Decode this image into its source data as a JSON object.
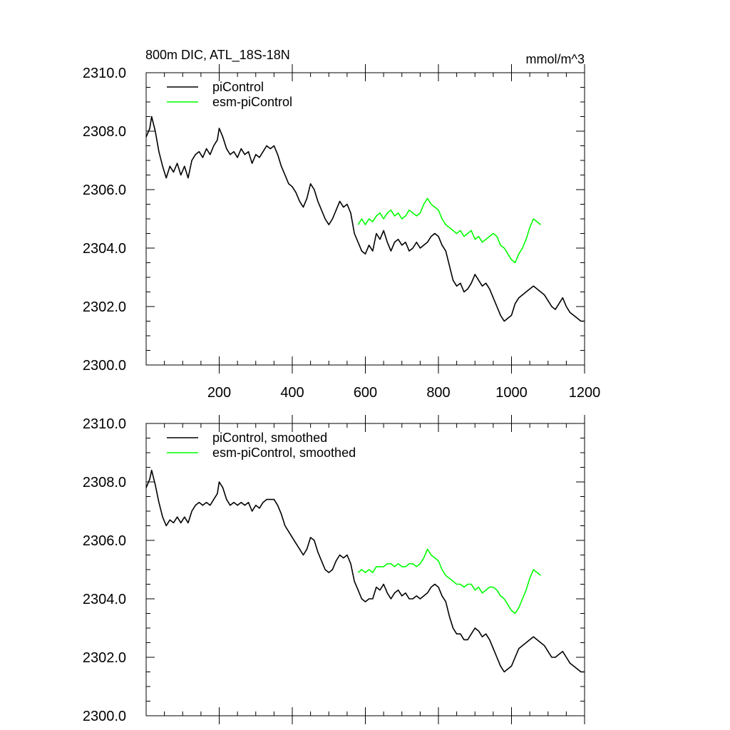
{
  "chart_data": [
    {
      "type": "line",
      "title": "800m DIC, ATL_18S-18N",
      "units": "mmol/m^3",
      "xlim": [
        0,
        1200
      ],
      "ylim": [
        2300.0,
        2310.0
      ],
      "xticks": [
        200,
        400,
        600,
        800,
        1000,
        1200
      ],
      "xtick_labels": [
        "200",
        "400",
        "600",
        "800",
        "1000",
        "1200"
      ],
      "yticks": [
        2300.0,
        2302.0,
        2304.0,
        2306.0,
        2308.0,
        2310.0
      ],
      "ytick_labels": [
        "2300.0",
        "2302.0",
        "2304.0",
        "2306.0",
        "2308.0",
        "2310.0"
      ],
      "legend_position": "top-left",
      "series": [
        {
          "name": "piControl",
          "color": "#000000",
          "x": [
            0,
            10,
            15,
            25,
            35,
            45,
            55,
            65,
            75,
            85,
            95,
            105,
            115,
            125,
            135,
            145,
            155,
            165,
            175,
            185,
            195,
            200,
            210,
            220,
            230,
            240,
            250,
            260,
            270,
            280,
            290,
            300,
            310,
            320,
            330,
            340,
            350,
            360,
            370,
            380,
            390,
            400,
            410,
            420,
            430,
            440,
            450,
            460,
            470,
            480,
            490,
            500,
            510,
            520,
            530,
            540,
            550,
            560,
            570,
            580,
            590,
            600,
            610,
            620,
            630,
            640,
            650,
            660,
            670,
            680,
            690,
            700,
            710,
            720,
            730,
            740,
            750,
            760,
            770,
            780,
            790,
            800,
            810,
            820,
            830,
            840,
            850,
            860,
            870,
            880,
            890,
            900,
            910,
            920,
            930,
            940,
            950,
            960,
            970,
            980,
            990,
            1000,
            1010,
            1020,
            1030,
            1040,
            1050,
            1060,
            1070,
            1080,
            1090,
            1100,
            1110,
            1120,
            1130,
            1140,
            1150,
            1160,
            1170,
            1180,
            1190,
            1200
          ],
          "y": [
            2307.8,
            2308.1,
            2308.5,
            2308.0,
            2307.3,
            2306.8,
            2306.4,
            2306.8,
            2306.6,
            2306.9,
            2306.5,
            2306.8,
            2306.4,
            2307.0,
            2307.2,
            2307.3,
            2307.1,
            2307.4,
            2307.2,
            2307.5,
            2307.7,
            2308.1,
            2307.8,
            2307.4,
            2307.2,
            2307.3,
            2307.1,
            2307.4,
            2307.2,
            2307.3,
            2306.9,
            2307.2,
            2307.1,
            2307.3,
            2307.5,
            2307.4,
            2307.5,
            2307.2,
            2306.8,
            2306.5,
            2306.2,
            2306.1,
            2305.9,
            2305.6,
            2305.4,
            2305.7,
            2306.2,
            2306.0,
            2305.6,
            2305.3,
            2305.0,
            2304.8,
            2305.0,
            2305.3,
            2305.6,
            2305.4,
            2305.5,
            2305.2,
            2304.5,
            2304.2,
            2303.9,
            2303.8,
            2304.1,
            2303.9,
            2304.5,
            2304.3,
            2304.6,
            2304.2,
            2303.9,
            2304.2,
            2304.3,
            2304.1,
            2304.2,
            2303.9,
            2304.0,
            2304.2,
            2304.0,
            2304.1,
            2304.2,
            2304.4,
            2304.5,
            2304.4,
            2304.1,
            2303.9,
            2303.4,
            2302.9,
            2302.7,
            2302.8,
            2302.5,
            2302.6,
            2302.8,
            2303.1,
            2302.9,
            2302.7,
            2302.8,
            2302.6,
            2302.3,
            2302.0,
            2301.7,
            2301.5,
            2301.6,
            2301.7,
            2302.1,
            2302.3,
            2302.4,
            2302.5,
            2302.6,
            2302.7,
            2302.6,
            2302.5,
            2302.4,
            2302.2,
            2302.0,
            2301.9,
            2302.1,
            2302.3,
            2302.0,
            2301.8,
            2301.7,
            2301.6,
            2301.5,
            2301.5
          ]
        },
        {
          "name": "esm-piControl",
          "color": "#00ff00",
          "x": [
            580,
            590,
            600,
            610,
            620,
            630,
            640,
            650,
            660,
            670,
            680,
            690,
            700,
            710,
            720,
            730,
            740,
            750,
            760,
            770,
            780,
            790,
            800,
            810,
            820,
            830,
            840,
            850,
            860,
            870,
            880,
            890,
            900,
            910,
            920,
            930,
            940,
            950,
            960,
            970,
            980,
            990,
            1000,
            1010,
            1020,
            1030,
            1040,
            1050,
            1060,
            1070,
            1080
          ],
          "y": [
            2304.8,
            2305.0,
            2304.8,
            2305.0,
            2304.9,
            2305.1,
            2305.2,
            2305.0,
            2305.2,
            2305.3,
            2305.1,
            2305.2,
            2305.0,
            2305.1,
            2305.3,
            2305.2,
            2305.1,
            2305.2,
            2305.5,
            2305.7,
            2305.5,
            2305.4,
            2305.3,
            2305.0,
            2304.8,
            2304.7,
            2304.6,
            2304.5,
            2304.6,
            2304.4,
            2304.5,
            2304.6,
            2304.3,
            2304.4,
            2304.2,
            2304.3,
            2304.4,
            2304.5,
            2304.4,
            2304.1,
            2304.0,
            2303.8,
            2303.6,
            2303.5,
            2303.8,
            2304.0,
            2304.3,
            2304.7,
            2305.0,
            2304.9,
            2304.8
          ]
        }
      ]
    },
    {
      "type": "line",
      "xlim": [
        0,
        1200
      ],
      "ylim": [
        2300.0,
        2310.0
      ],
      "xticks": [
        200,
        400,
        600,
        800,
        1000,
        1200
      ],
      "yticks": [
        2300.0,
        2302.0,
        2304.0,
        2306.0,
        2308.0,
        2310.0
      ],
      "ytick_labels": [
        "2300.0",
        "2302.0",
        "2304.0",
        "2306.0",
        "2308.0",
        "2310.0"
      ],
      "legend_position": "top-left",
      "series": [
        {
          "name": "piControl, smoothed",
          "color": "#000000",
          "x": [
            0,
            10,
            15,
            25,
            35,
            45,
            55,
            65,
            75,
            85,
            95,
            105,
            115,
            125,
            135,
            145,
            155,
            165,
            175,
            185,
            195,
            200,
            210,
            220,
            230,
            240,
            250,
            260,
            270,
            280,
            290,
            300,
            310,
            320,
            330,
            340,
            350,
            360,
            370,
            380,
            390,
            400,
            410,
            420,
            430,
            440,
            450,
            460,
            470,
            480,
            490,
            500,
            510,
            520,
            530,
            540,
            550,
            560,
            570,
            580,
            590,
            600,
            610,
            620,
            630,
            640,
            650,
            660,
            670,
            680,
            690,
            700,
            710,
            720,
            730,
            740,
            750,
            760,
            770,
            780,
            790,
            800,
            810,
            820,
            830,
            840,
            850,
            860,
            870,
            880,
            890,
            900,
            910,
            920,
            930,
            940,
            950,
            960,
            970,
            980,
            990,
            1000,
            1010,
            1020,
            1030,
            1040,
            1050,
            1060,
            1070,
            1080,
            1090,
            1100,
            1110,
            1120,
            1130,
            1140,
            1150,
            1160,
            1170,
            1180,
            1190,
            1200
          ],
          "y": [
            2307.8,
            2308.1,
            2308.4,
            2307.9,
            2307.3,
            2306.8,
            2306.5,
            2306.7,
            2306.6,
            2306.8,
            2306.6,
            2306.8,
            2306.6,
            2307.0,
            2307.2,
            2307.3,
            2307.2,
            2307.3,
            2307.2,
            2307.4,
            2307.6,
            2308.0,
            2307.8,
            2307.4,
            2307.2,
            2307.3,
            2307.2,
            2307.3,
            2307.2,
            2307.3,
            2307.0,
            2307.2,
            2307.1,
            2307.3,
            2307.4,
            2307.4,
            2307.4,
            2307.2,
            2306.9,
            2306.5,
            2306.3,
            2306.1,
            2305.9,
            2305.7,
            2305.5,
            2305.7,
            2306.1,
            2306.0,
            2305.6,
            2305.3,
            2305.0,
            2304.9,
            2305.0,
            2305.3,
            2305.5,
            2305.4,
            2305.5,
            2305.2,
            2304.6,
            2304.3,
            2304.0,
            2303.9,
            2304.0,
            2304.0,
            2304.4,
            2304.3,
            2304.5,
            2304.2,
            2304.0,
            2304.2,
            2304.3,
            2304.1,
            2304.2,
            2304.0,
            2304.0,
            2304.1,
            2304.0,
            2304.1,
            2304.2,
            2304.4,
            2304.5,
            2304.4,
            2304.1,
            2303.9,
            2303.4,
            2303.0,
            2302.8,
            2302.8,
            2302.6,
            2302.6,
            2302.8,
            2303.0,
            2302.9,
            2302.7,
            2302.8,
            2302.6,
            2302.3,
            2302.0,
            2301.7,
            2301.5,
            2301.6,
            2301.7,
            2302.0,
            2302.3,
            2302.4,
            2302.5,
            2302.6,
            2302.7,
            2302.6,
            2302.5,
            2302.4,
            2302.2,
            2302.0,
            2302.0,
            2302.1,
            2302.2,
            2302.0,
            2301.8,
            2301.7,
            2301.6,
            2301.5,
            2301.5
          ]
        },
        {
          "name": "esm-piControl, smoothed",
          "color": "#00ff00",
          "x": [
            580,
            590,
            600,
            610,
            620,
            630,
            640,
            650,
            660,
            670,
            680,
            690,
            700,
            710,
            720,
            730,
            740,
            750,
            760,
            770,
            780,
            790,
            800,
            810,
            820,
            830,
            840,
            850,
            860,
            870,
            880,
            890,
            900,
            910,
            920,
            930,
            940,
            950,
            960,
            970,
            980,
            990,
            1000,
            1010,
            1020,
            1030,
            1040,
            1050,
            1060,
            1070,
            1080
          ],
          "y": [
            2304.9,
            2305.0,
            2304.9,
            2305.0,
            2304.9,
            2305.1,
            2305.1,
            2305.1,
            2305.2,
            2305.2,
            2305.1,
            2305.2,
            2305.1,
            2305.1,
            2305.2,
            2305.2,
            2305.1,
            2305.2,
            2305.4,
            2305.7,
            2305.5,
            2305.4,
            2305.3,
            2305.0,
            2304.8,
            2304.7,
            2304.6,
            2304.5,
            2304.5,
            2304.4,
            2304.5,
            2304.5,
            2304.3,
            2304.4,
            2304.2,
            2304.3,
            2304.4,
            2304.4,
            2304.3,
            2304.1,
            2304.0,
            2303.8,
            2303.6,
            2303.5,
            2303.7,
            2304.0,
            2304.3,
            2304.7,
            2305.0,
            2304.9,
            2304.8
          ]
        }
      ]
    }
  ]
}
